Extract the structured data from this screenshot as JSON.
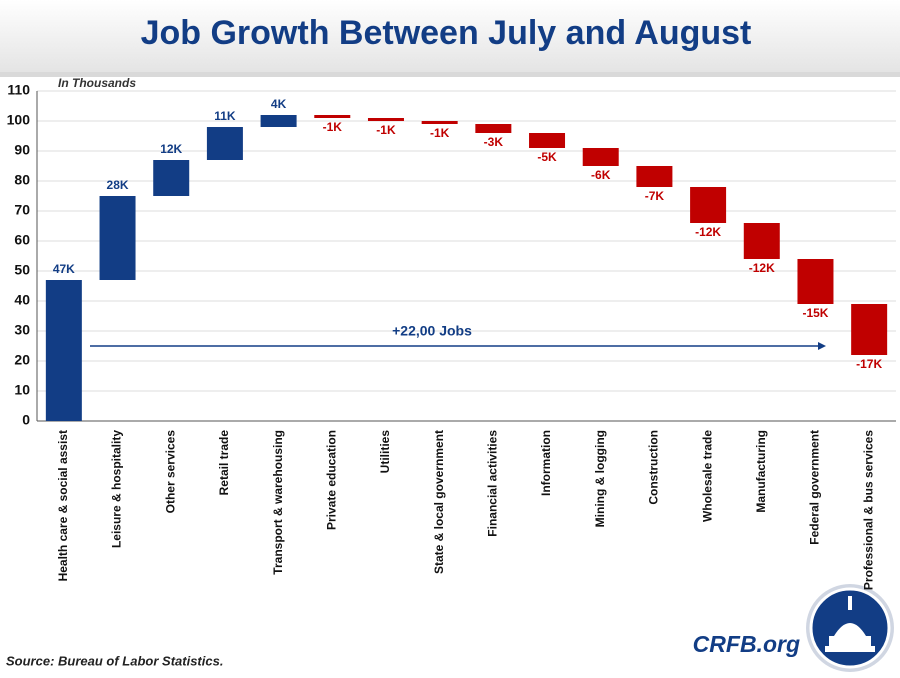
{
  "chart_data": {
    "type": "waterfall",
    "title": "Job Growth Between July and August",
    "subtitle": "In Thousands",
    "annotation": "+22,00 Jobs",
    "source": "Source: Bureau of Labor Statistics.",
    "brand": "CRFB.org",
    "categories": [
      "Health care & social assist",
      "Leisure & hospitality",
      "Other services",
      "Retail trade",
      "Transport & warehousing",
      "Private education",
      "Utilities",
      "State & local government",
      "Financial activities",
      "Information",
      "Mining & logging",
      "Construction",
      "Wholesale trade",
      "Manufacturing",
      "Federal government",
      "Professional & bus services"
    ],
    "values": [
      47,
      28,
      12,
      11,
      4,
      -1,
      -1,
      -1,
      -3,
      -5,
      -6,
      -7,
      -12,
      -12,
      -15,
      -17
    ],
    "value_labels": [
      "47K",
      "28K",
      "12K",
      "11K",
      "4K",
      "-1K",
      "-1K",
      "-1K",
      "-3K",
      "-5K",
      "-6K",
      "-7K",
      "-12K",
      "-12K",
      "-15K",
      "-17K"
    ],
    "colors": {
      "increase": "#123d85",
      "decrease": "#c00000"
    },
    "ylim": [
      0,
      110
    ],
    "yticks": [
      0,
      10,
      20,
      30,
      40,
      50,
      60,
      70,
      80,
      90,
      100,
      110
    ],
    "grid": true
  }
}
